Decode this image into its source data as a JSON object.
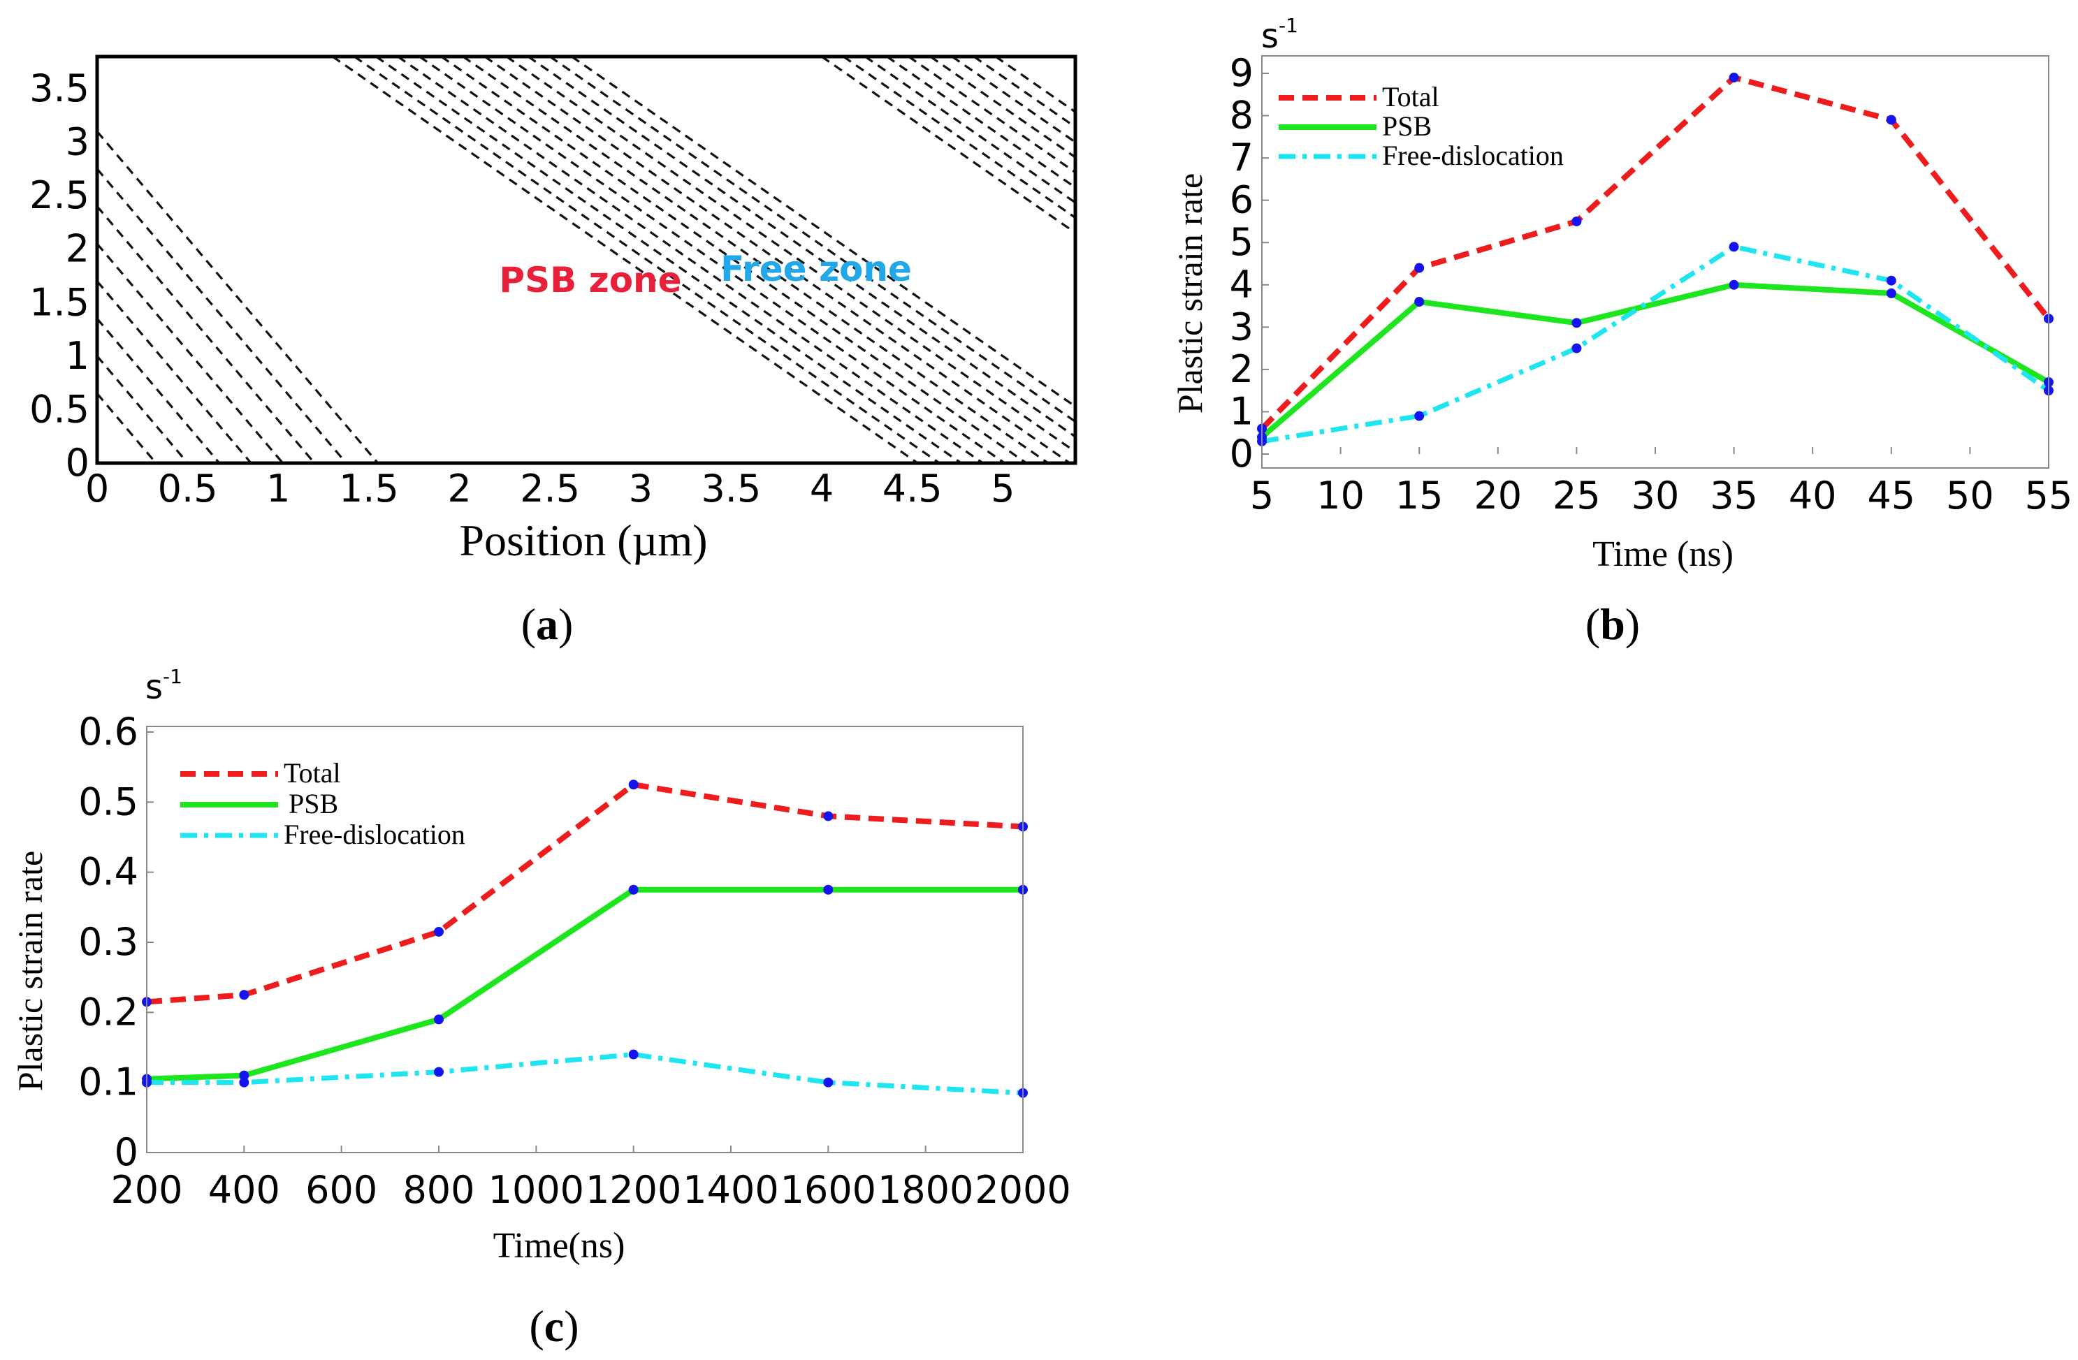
{
  "colors": {
    "total": "#ee1c1c",
    "psb": "#1ee61e",
    "free": "#1ee6f0",
    "marker": "#1414f0",
    "psb_zone_text": "#e8203a",
    "free_zone_text": "#22a8e8"
  },
  "chart_data": [
    {
      "panel": "a",
      "panel_label": "(a)",
      "panel_letter": "a",
      "type": "diagram",
      "xlabel": "Position (µm)",
      "xticks": [
        "0",
        "0.5",
        "1",
        "1.5",
        "2",
        "2.5",
        "3",
        "3.5",
        "4",
        "4.5",
        "5"
      ],
      "yticks": [
        "0",
        "0.5",
        "1",
        "1.5",
        "2",
        "2.5",
        "3",
        "3.5"
      ],
      "xlim": [
        0,
        5.4
      ],
      "ylim": [
        0,
        3.8
      ],
      "annotations": [
        {
          "text": "PSB zone",
          "color": "#e8203a"
        },
        {
          "text": "Free zone",
          "color": "#22a8e8"
        }
      ],
      "line_groups": [
        {
          "name": "left band",
          "x_top_start": 0.0,
          "x_top_end": 0.0,
          "y_top_start": 3.1,
          "y_top_step": -0.35,
          "count": 8,
          "dx_per_unit_y": 0.5
        },
        {
          "name": "middle band",
          "x_top_start": 1.3,
          "x_top_step": 0.12,
          "count": 12,
          "dx_per_unit_y": 0.85
        },
        {
          "name": "right band",
          "x_top_start": 4.0,
          "x_top_step": 0.12,
          "count": 9,
          "dx_per_unit_y": 0.85
        }
      ]
    },
    {
      "panel": "b",
      "panel_label": "(b)",
      "panel_letter": "b",
      "type": "line",
      "unit_label": "s-1",
      "unit_base": "s",
      "unit_exp": "-1",
      "xlabel": "Time (ns)",
      "ylabel": "Plastic strain rate",
      "xlim": [
        5,
        55
      ],
      "ylim": [
        0,
        9
      ],
      "xticks": [
        5,
        10,
        15,
        20,
        25,
        30,
        35,
        40,
        45,
        50,
        55
      ],
      "yticks": [
        0,
        1,
        2,
        3,
        4,
        5,
        6,
        7,
        8,
        9
      ],
      "x": [
        5,
        15,
        25,
        35,
        45,
        55
      ],
      "legend_position": "top-left",
      "series": [
        {
          "name": "Total",
          "values": [
            0.6,
            4.4,
            5.5,
            8.9,
            7.9,
            3.2
          ]
        },
        {
          "name": "PSB",
          "values": [
            0.4,
            3.6,
            3.1,
            4.0,
            3.8,
            1.7
          ]
        },
        {
          "name": "Free-dislocation",
          "values": [
            0.3,
            0.9,
            2.5,
            4.9,
            4.1,
            1.5
          ]
        }
      ]
    },
    {
      "panel": "c",
      "panel_label": "(c)",
      "panel_letter": "c",
      "type": "line",
      "unit_label": "s-1",
      "unit_base": "s",
      "unit_exp": "-1",
      "xlabel": "Time(ns)",
      "ylabel": "Plastic strain rate",
      "xlim": [
        200,
        2000
      ],
      "ylim": [
        0,
        0.6
      ],
      "xticks": [
        200,
        400,
        600,
        800,
        1000,
        1200,
        1400,
        1600,
        1800,
        2000
      ],
      "yticks": [
        "0",
        "0.1",
        "0.2",
        "0.3",
        "0.4",
        "0.5",
        "0.6"
      ],
      "x": [
        200,
        400,
        800,
        1200,
        1600,
        2000
      ],
      "legend_position": "top-left",
      "series": [
        {
          "name": "Total",
          "values": [
            0.215,
            0.225,
            0.315,
            0.525,
            0.48,
            0.465
          ]
        },
        {
          "name": "PSB",
          "values": [
            0.105,
            0.11,
            0.19,
            0.375,
            0.375,
            0.375
          ]
        },
        {
          "name": "Free-dislocation",
          "values": [
            0.1,
            0.1,
            0.115,
            0.14,
            0.1,
            0.085
          ]
        }
      ]
    }
  ]
}
